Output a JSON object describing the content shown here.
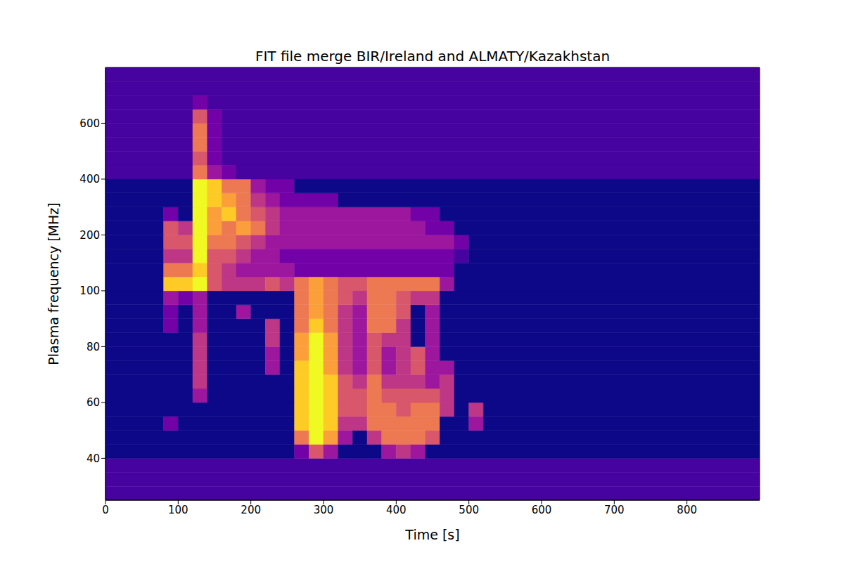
{
  "chart_data": {
    "type": "heatmap",
    "title": "FIT file merge BIR/Ireland and ALMATY/Kazakhstan",
    "x_label": "Time [s]",
    "y_label": "Plasma frequency [MHz]",
    "xlim": [
      0,
      900
    ],
    "xticks": [
      0,
      100,
      200,
      300,
      400,
      500,
      600,
      700,
      800
    ],
    "ylim": [
      25,
      800
    ],
    "yticks": [
      40,
      60,
      80,
      100,
      200,
      400,
      600
    ],
    "zlim": [
      0,
      9
    ],
    "x_edges": [
      0,
      20,
      40,
      60,
      80,
      100,
      120,
      140,
      160,
      180,
      200,
      220,
      240,
      260,
      280,
      300,
      320,
      340,
      360,
      380,
      400,
      420,
      440,
      460,
      480,
      500,
      520,
      540,
      560,
      580,
      600,
      620,
      640,
      660,
      680,
      700,
      720,
      740,
      760,
      780,
      800,
      820,
      840,
      860,
      880,
      900
    ],
    "y_edges": [
      25,
      30,
      35,
      40,
      45,
      50,
      55,
      60,
      65,
      70,
      75,
      80,
      85,
      90,
      95,
      100,
      125,
      150,
      175,
      200,
      250,
      300,
      350,
      400,
      450,
      500,
      550,
      600,
      650,
      700,
      750,
      800
    ],
    "cells": [
      [
        1,
        1,
        1,
        1,
        1,
        1,
        1,
        1,
        1,
        1,
        1,
        1,
        1,
        1,
        1,
        1,
        1,
        1,
        1,
        1,
        1,
        1,
        1,
        1,
        1,
        1,
        1,
        1,
        1,
        1,
        1,
        1,
        1,
        1,
        1,
        1,
        1,
        1,
        1,
        1,
        1,
        1,
        1,
        1,
        1
      ],
      [
        1,
        1,
        1,
        1,
        1,
        1,
        1,
        1,
        1,
        1,
        1,
        1,
        1,
        1,
        1,
        1,
        1,
        1,
        1,
        1,
        1,
        1,
        1,
        1,
        1,
        1,
        1,
        1,
        1,
        1,
        1,
        1,
        1,
        1,
        1,
        1,
        1,
        1,
        1,
        1,
        1,
        1,
        1,
        1,
        1
      ],
      [
        1,
        1,
        1,
        1,
        1,
        1,
        1,
        1,
        1,
        1,
        1,
        1,
        1,
        1,
        1,
        1,
        1,
        1,
        1,
        1,
        1,
        1,
        1,
        1,
        1,
        1,
        1,
        1,
        1,
        1,
        1,
        1,
        1,
        1,
        1,
        1,
        1,
        1,
        1,
        1,
        1,
        1,
        1,
        1,
        1
      ],
      [
        0,
        0,
        0,
        0,
        0,
        0,
        0,
        0,
        0,
        0,
        0,
        0,
        0,
        2,
        5,
        3,
        0,
        0,
        0,
        3,
        4,
        3,
        0,
        0,
        0,
        0,
        0,
        0,
        0,
        0,
        0,
        0,
        0,
        0,
        0,
        0,
        0,
        0,
        0,
        0,
        0,
        0,
        0,
        0,
        0
      ],
      [
        0,
        0,
        0,
        0,
        0,
        0,
        0,
        0,
        0,
        0,
        0,
        0,
        0,
        6,
        9,
        7,
        3,
        0,
        4,
        6,
        6,
        6,
        5,
        0,
        0,
        0,
        0,
        0,
        0,
        0,
        0,
        0,
        0,
        0,
        0,
        0,
        0,
        0,
        0,
        0,
        0,
        0,
        0,
        0,
        0
      ],
      [
        0,
        0,
        0,
        0,
        2,
        0,
        0,
        0,
        0,
        0,
        0,
        0,
        0,
        8,
        9,
        8,
        4,
        4,
        6,
        6,
        6,
        6,
        6,
        0,
        0,
        3,
        0,
        0,
        0,
        0,
        0,
        0,
        0,
        0,
        0,
        0,
        0,
        0,
        0,
        0,
        0,
        0,
        0,
        0,
        0
      ],
      [
        0,
        0,
        0,
        0,
        0,
        0,
        0,
        0,
        0,
        0,
        0,
        0,
        0,
        8,
        9,
        8,
        5,
        5,
        6,
        6,
        5,
        6,
        6,
        4,
        0,
        4,
        0,
        0,
        0,
        0,
        0,
        0,
        0,
        0,
        0,
        0,
        0,
        0,
        0,
        0,
        0,
        0,
        0,
        0,
        0
      ],
      [
        0,
        0,
        0,
        0,
        0,
        0,
        3,
        0,
        0,
        0,
        0,
        0,
        0,
        8,
        9,
        8,
        5,
        5,
        6,
        5,
        5,
        5,
        5,
        4,
        0,
        0,
        0,
        0,
        0,
        0,
        0,
        0,
        0,
        0,
        0,
        0,
        0,
        0,
        0,
        0,
        0,
        0,
        0,
        0,
        0
      ],
      [
        0,
        0,
        0,
        0,
        0,
        0,
        4,
        0,
        0,
        0,
        0,
        0,
        0,
        8,
        9,
        8,
        5,
        4,
        6,
        4,
        4,
        4,
        3,
        4,
        0,
        0,
        0,
        0,
        0,
        0,
        0,
        0,
        0,
        0,
        0,
        0,
        0,
        0,
        0,
        0,
        0,
        0,
        0,
        0,
        0
      ],
      [
        0,
        0,
        0,
        0,
        0,
        0,
        4,
        0,
        0,
        0,
        0,
        3,
        0,
        8,
        9,
        7,
        4,
        3,
        5,
        3,
        4,
        5,
        3,
        3,
        0,
        0,
        0,
        0,
        0,
        0,
        0,
        0,
        0,
        0,
        0,
        0,
        0,
        0,
        0,
        0,
        0,
        0,
        0,
        0,
        0
      ],
      [
        0,
        0,
        0,
        0,
        0,
        0,
        4,
        0,
        0,
        0,
        0,
        3,
        0,
        7,
        9,
        7,
        4,
        3,
        5,
        3,
        4,
        5,
        3,
        0,
        0,
        0,
        0,
        0,
        0,
        0,
        0,
        0,
        0,
        0,
        0,
        0,
        0,
        0,
        0,
        0,
        0,
        0,
        0,
        0,
        0
      ],
      [
        0,
        0,
        0,
        0,
        0,
        0,
        4,
        0,
        0,
        0,
        0,
        4,
        0,
        7,
        9,
        7,
        4,
        3,
        5,
        4,
        4,
        0,
        3,
        0,
        0,
        0,
        0,
        0,
        0,
        0,
        0,
        0,
        0,
        0,
        0,
        0,
        0,
        0,
        0,
        0,
        0,
        0,
        0,
        0,
        0
      ],
      [
        0,
        0,
        0,
        0,
        2,
        0,
        3,
        0,
        0,
        0,
        0,
        4,
        0,
        6,
        8,
        6,
        4,
        3,
        6,
        6,
        4,
        0,
        3,
        0,
        0,
        0,
        0,
        0,
        0,
        0,
        0,
        0,
        0,
        0,
        0,
        0,
        0,
        0,
        0,
        0,
        0,
        0,
        0,
        0,
        0
      ],
      [
        0,
        0,
        0,
        0,
        2,
        0,
        3,
        0,
        0,
        3,
        0,
        0,
        0,
        6,
        7,
        6,
        4,
        3,
        6,
        6,
        5,
        0,
        3,
        0,
        0,
        0,
        0,
        0,
        0,
        0,
        0,
        0,
        0,
        0,
        0,
        0,
        0,
        0,
        0,
        0,
        0,
        0,
        0,
        0,
        0
      ],
      [
        0,
        0,
        0,
        0,
        3,
        2,
        3,
        0,
        0,
        0,
        0,
        0,
        0,
        6,
        7,
        6,
        5,
        4,
        6,
        6,
        5,
        4,
        4,
        0,
        0,
        0,
        0,
        0,
        0,
        0,
        0,
        0,
        0,
        0,
        0,
        0,
        0,
        0,
        0,
        0,
        0,
        0,
        0,
        0,
        0
      ],
      [
        0,
        0,
        0,
        0,
        8,
        8,
        9,
        5,
        4,
        4,
        4,
        5,
        4,
        6,
        7,
        6,
        5,
        5,
        6,
        6,
        6,
        6,
        6,
        3,
        0,
        0,
        0,
        0,
        0,
        0,
        0,
        0,
        0,
        0,
        0,
        0,
        0,
        0,
        0,
        0,
        0,
        0,
        0,
        0,
        0
      ],
      [
        0,
        0,
        0,
        0,
        6,
        6,
        8,
        5,
        4,
        3,
        3,
        3,
        3,
        2,
        2,
        2,
        2,
        2,
        2,
        2,
        2,
        2,
        2,
        2,
        0,
        0,
        0,
        0,
        0,
        0,
        0,
        0,
        0,
        0,
        0,
        0,
        0,
        0,
        0,
        0,
        0,
        0,
        0,
        0,
        0
      ],
      [
        0,
        0,
        0,
        0,
        4,
        4,
        9,
        5,
        5,
        4,
        3,
        3,
        2,
        2,
        2,
        2,
        2,
        2,
        2,
        2,
        2,
        2,
        2,
        2,
        1,
        0,
        0,
        0,
        0,
        0,
        0,
        0,
        0,
        0,
        0,
        0,
        0,
        0,
        0,
        0,
        0,
        0,
        0,
        0,
        0
      ],
      [
        0,
        0,
        0,
        0,
        5,
        5,
        9,
        6,
        6,
        5,
        4,
        3,
        3,
        3,
        3,
        3,
        3,
        3,
        3,
        3,
        3,
        3,
        3,
        3,
        2,
        0,
        0,
        0,
        0,
        0,
        0,
        0,
        0,
        0,
        0,
        0,
        0,
        0,
        0,
        0,
        0,
        0,
        0,
        0,
        0
      ],
      [
        0,
        0,
        0,
        0,
        5,
        4,
        9,
        7,
        6,
        7,
        6,
        4,
        3,
        3,
        3,
        3,
        3,
        3,
        3,
        3,
        3,
        3,
        2,
        2,
        0,
        0,
        0,
        0,
        0,
        0,
        0,
        0,
        0,
        0,
        0,
        0,
        0,
        0,
        0,
        0,
        0,
        0,
        0,
        0,
        0
      ],
      [
        0,
        0,
        0,
        0,
        2,
        0,
        9,
        7,
        8,
        6,
        5,
        4,
        3,
        3,
        3,
        3,
        3,
        3,
        3,
        3,
        3,
        2,
        2,
        0,
        0,
        0,
        0,
        0,
        0,
        0,
        0,
        0,
        0,
        0,
        0,
        0,
        0,
        0,
        0,
        0,
        0,
        0,
        0,
        0,
        0
      ],
      [
        0,
        0,
        0,
        0,
        0,
        0,
        9,
        8,
        7,
        6,
        4,
        3,
        2,
        2,
        2,
        2,
        0,
        0,
        0,
        0,
        0,
        0,
        0,
        0,
        0,
        0,
        0,
        0,
        0,
        0,
        0,
        0,
        0,
        0,
        0,
        0,
        0,
        0,
        0,
        0,
        0,
        0,
        0,
        0,
        0
      ],
      [
        0,
        0,
        0,
        0,
        0,
        0,
        9,
        8,
        6,
        6,
        3,
        2,
        2,
        0,
        0,
        0,
        0,
        0,
        0,
        0,
        0,
        0,
        0,
        0,
        0,
        0,
        0,
        0,
        0,
        0,
        0,
        0,
        0,
        0,
        0,
        0,
        0,
        0,
        0,
        0,
        0,
        0,
        0,
        0,
        0
      ],
      [
        1,
        1,
        1,
        1,
        1,
        1,
        6,
        3,
        2,
        1,
        1,
        1,
        1,
        1,
        1,
        1,
        1,
        1,
        1,
        1,
        1,
        1,
        1,
        1,
        1,
        1,
        1,
        1,
        1,
        1,
        1,
        1,
        1,
        1,
        1,
        1,
        1,
        1,
        1,
        1,
        1,
        1,
        1,
        1,
        1
      ],
      [
        1,
        1,
        1,
        1,
        1,
        1,
        5,
        2,
        1,
        1,
        1,
        1,
        1,
        1,
        1,
        1,
        1,
        1,
        1,
        1,
        1,
        1,
        1,
        1,
        1,
        1,
        1,
        1,
        1,
        1,
        1,
        1,
        1,
        1,
        1,
        1,
        1,
        1,
        1,
        1,
        1,
        1,
        1,
        1,
        1
      ],
      [
        1,
        1,
        1,
        1,
        1,
        1,
        6,
        2,
        1,
        1,
        1,
        1,
        1,
        1,
        1,
        1,
        1,
        1,
        1,
        1,
        1,
        1,
        1,
        1,
        1,
        1,
        1,
        1,
        1,
        1,
        1,
        1,
        1,
        1,
        1,
        1,
        1,
        1,
        1,
        1,
        1,
        1,
        1,
        1,
        1
      ],
      [
        1,
        1,
        1,
        1,
        1,
        1,
        6,
        2,
        1,
        1,
        1,
        1,
        1,
        1,
        1,
        1,
        1,
        1,
        1,
        1,
        1,
        1,
        1,
        1,
        1,
        1,
        1,
        1,
        1,
        1,
        1,
        1,
        1,
        1,
        1,
        1,
        1,
        1,
        1,
        1,
        1,
        1,
        1,
        1,
        1
      ],
      [
        1,
        1,
        1,
        1,
        1,
        1,
        5,
        2,
        1,
        1,
        1,
        1,
        1,
        1,
        1,
        1,
        1,
        1,
        1,
        1,
        1,
        1,
        1,
        1,
        1,
        1,
        1,
        1,
        1,
        1,
        1,
        1,
        1,
        1,
        1,
        1,
        1,
        1,
        1,
        1,
        1,
        1,
        1,
        1,
        1
      ],
      [
        1,
        1,
        1,
        1,
        1,
        1,
        2,
        1,
        1,
        1,
        1,
        1,
        1,
        1,
        1,
        1,
        1,
        1,
        1,
        1,
        1,
        1,
        1,
        1,
        1,
        1,
        1,
        1,
        1,
        1,
        1,
        1,
        1,
        1,
        1,
        1,
        1,
        1,
        1,
        1,
        1,
        1,
        1,
        1,
        1
      ],
      [
        1,
        1,
        1,
        1,
        1,
        1,
        1,
        1,
        1,
        1,
        1,
        1,
        1,
        1,
        1,
        1,
        1,
        1,
        1,
        1,
        1,
        1,
        1,
        1,
        1,
        1,
        1,
        1,
        1,
        1,
        1,
        1,
        1,
        1,
        1,
        1,
        1,
        1,
        1,
        1,
        1,
        1,
        1,
        1,
        1
      ],
      [
        1,
        1,
        1,
        1,
        1,
        1,
        1,
        1,
        1,
        1,
        1,
        1,
        1,
        1,
        1,
        1,
        1,
        1,
        1,
        1,
        1,
        1,
        1,
        1,
        1,
        1,
        1,
        1,
        1,
        1,
        1,
        1,
        1,
        1,
        1,
        1,
        1,
        1,
        1,
        1,
        1,
        1,
        1,
        1,
        1
      ]
    ]
  }
}
